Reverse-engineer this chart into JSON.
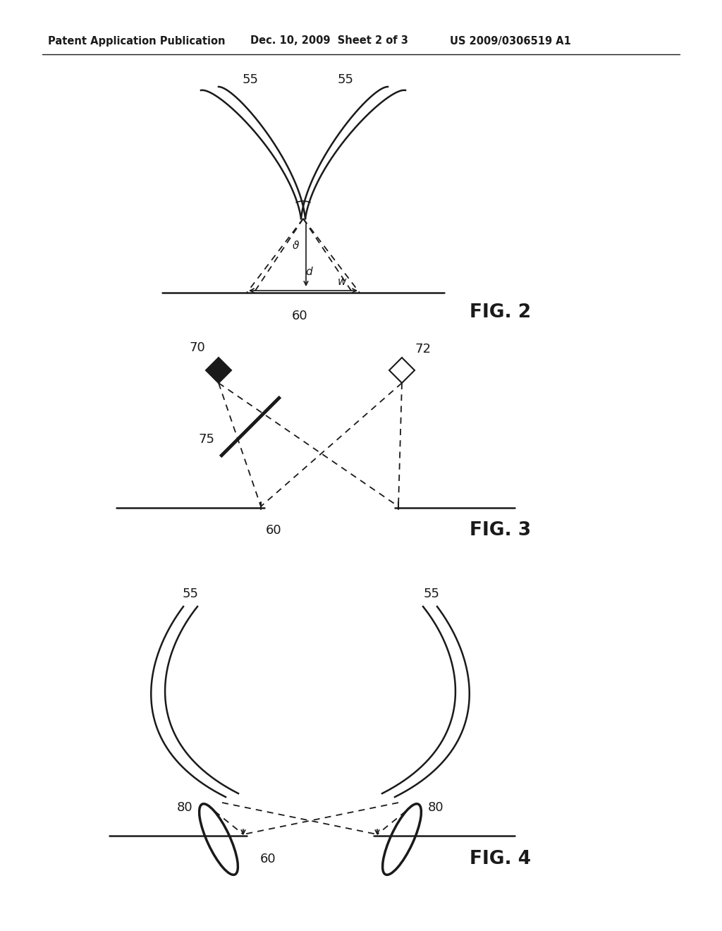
{
  "bg_color": "#ffffff",
  "text_color": "#1a1a1a",
  "line_color": "#1a1a1a",
  "header_left": "Patent Application Publication",
  "header_mid": "Dec. 10, 2009  Sheet 2 of 3",
  "header_right": "US 2009/0306519 A1"
}
